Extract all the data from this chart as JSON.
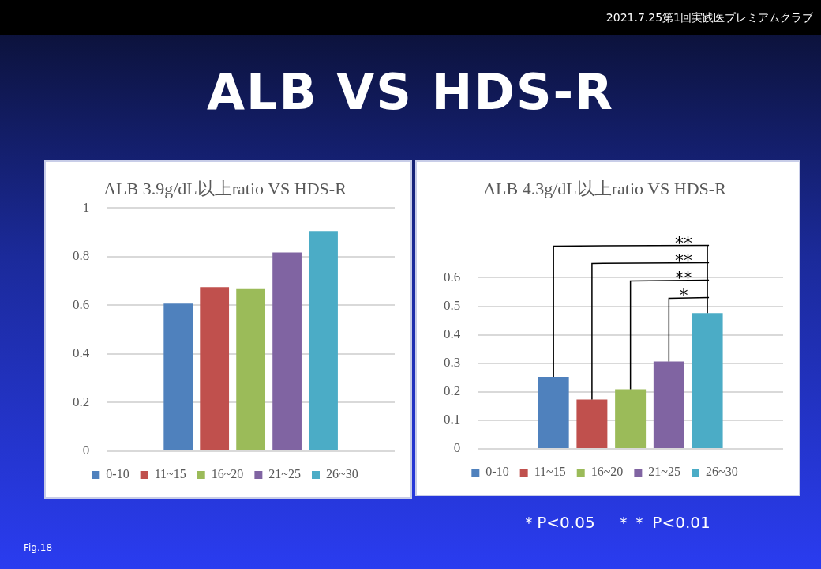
{
  "chart_data": [
    {
      "type": "other",
      "title": "ALB VS HDS-R",
      "annotations": [
        "2021.7.25第1回実践医プレミアムクラブ",
        "Fig.18"
      ]
    },
    {
      "type": "bar",
      "title": "ALB 3.9g/dL以上ratio VS HDS-R",
      "categories": [
        null
      ],
      "series": [
        {
          "name": "0-10",
          "color": "#4f81bd",
          "values": [
            0.607
          ]
        },
        {
          "name": "11~15",
          "color": "#c0504d",
          "values": [
            0.675
          ]
        },
        {
          "name": "16~20",
          "color": "#9bbb59",
          "values": [
            0.667
          ]
        },
        {
          "name": "21~25",
          "color": "#8064a2",
          "values": [
            0.818
          ]
        },
        {
          "name": "26~30",
          "color": "#4bacc6",
          "values": [
            0.906
          ]
        }
      ],
      "ylim": [
        0,
        1
      ],
      "yticks": [
        0,
        {
          "value": 0.2,
          "label": "0.2"
        },
        {
          "value": 0.4,
          "label": "0.4"
        },
        {
          "value": 0.6,
          "label": "0.6"
        },
        {
          "value": 0.8,
          "label": "0.8"
        },
        1
      ],
      "grid": "y",
      "legend": "bottom"
    },
    {
      "type": "bar",
      "title": "ALB 4.3g/dL以上ratio VS HDS-R",
      "categories": [
        null
      ],
      "series": [
        {
          "name": "0-10",
          "color": "#4f81bd",
          "values": [
            0.252
          ]
        },
        {
          "name": "11~15",
          "color": "#c0504d",
          "values": [
            0.173
          ]
        },
        {
          "name": "16~20",
          "color": "#9bbb59",
          "values": [
            0.209
          ]
        },
        {
          "name": "21~25",
          "color": "#8064a2",
          "values": [
            0.306
          ]
        },
        {
          "name": "26~30",
          "color": "#4bacc6",
          "values": [
            0.476
          ]
        }
      ],
      "ylim": [
        0,
        0.6
      ],
      "yticks": [
        0,
        0.1,
        0.2,
        0.3,
        0.4,
        0.5,
        0.6
      ],
      "grid": "y",
      "legend": "bottom",
      "annotations": [
        "**",
        "**",
        "**",
        "*",
        "＊P<0.05　 ＊＊ P<0.01"
      ]
    }
  ]
}
